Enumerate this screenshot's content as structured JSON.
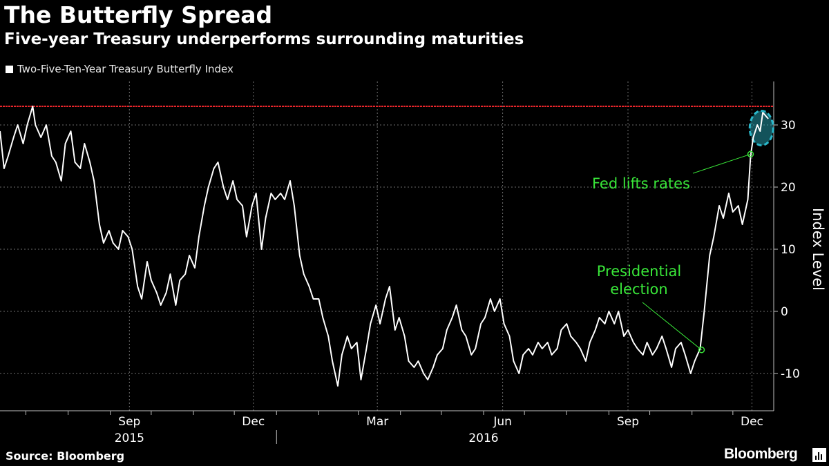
{
  "title": "The Butterfly Spread",
  "subtitle": "Five-year Treasury underperforms surrounding maturities",
  "legend": {
    "label": "Two-Five-Ten-Year Treasury Butterfly Index",
    "color": "#ffffff"
  },
  "source": "Source: Bloomberg",
  "brand": "Bloomberg",
  "colors": {
    "background": "#000000",
    "line": "#ffffff",
    "reference_line": "#e8262b",
    "annotation": "#39e639",
    "highlight": "#2ab7c9"
  },
  "chart_data": {
    "type": "line",
    "ylabel": "Index Level",
    "ylim": [
      -16,
      37
    ],
    "yticks": [
      30,
      20,
      10,
      0,
      -10
    ],
    "xlim": [
      "2015-06-12",
      "2016-12-31"
    ],
    "month_ticks": [
      "2015-07-01",
      "2015-08-01",
      "2015-09-01",
      "2015-10-01",
      "2015-11-01",
      "2015-12-01",
      "2016-01-01",
      "2016-02-01",
      "2016-03-01",
      "2016-04-01",
      "2016-05-01",
      "2016-06-01",
      "2016-07-01",
      "2016-08-01",
      "2016-09-01",
      "2016-10-01",
      "2016-11-01",
      "2016-12-01"
    ],
    "x_labels": [
      {
        "label": "Sep",
        "date": "2015-09-15"
      },
      {
        "label": "Dec",
        "date": "2015-12-15"
      },
      {
        "label": "Mar",
        "date": "2016-03-15"
      },
      {
        "label": "Jun",
        "date": "2016-06-15"
      },
      {
        "label": "Sep",
        "date": "2016-09-15"
      },
      {
        "label": "Dec",
        "date": "2016-12-15"
      }
    ],
    "year_labels": [
      {
        "label": "2015",
        "date": "2015-09-15"
      },
      {
        "label": "2016",
        "date": "2016-06-01"
      }
    ],
    "year_divider": "2016-01-01",
    "reference_line": 33,
    "series": [
      {
        "values": [
          [
            "2015-06-12",
            29
          ],
          [
            "2015-06-15",
            23
          ],
          [
            "2015-06-18",
            25
          ],
          [
            "2015-06-22",
            28
          ],
          [
            "2015-06-25",
            30
          ],
          [
            "2015-06-29",
            27
          ],
          [
            "2015-07-02",
            30
          ],
          [
            "2015-07-06",
            33
          ],
          [
            "2015-07-08",
            30
          ],
          [
            "2015-07-12",
            28
          ],
          [
            "2015-07-16",
            30
          ],
          [
            "2015-07-20",
            25
          ],
          [
            "2015-07-23",
            24
          ],
          [
            "2015-07-27",
            21
          ],
          [
            "2015-07-30",
            27
          ],
          [
            "2015-08-03",
            29
          ],
          [
            "2015-08-06",
            24
          ],
          [
            "2015-08-10",
            23
          ],
          [
            "2015-08-13",
            27
          ],
          [
            "2015-08-17",
            24
          ],
          [
            "2015-08-20",
            21
          ],
          [
            "2015-08-24",
            14
          ],
          [
            "2015-08-27",
            11
          ],
          [
            "2015-08-31",
            13
          ],
          [
            "2015-09-03",
            11
          ],
          [
            "2015-09-07",
            10
          ],
          [
            "2015-09-10",
            13
          ],
          [
            "2015-09-14",
            12
          ],
          [
            "2015-09-17",
            10
          ],
          [
            "2015-09-21",
            4
          ],
          [
            "2015-09-24",
            2
          ],
          [
            "2015-09-28",
            8
          ],
          [
            "2015-10-01",
            5
          ],
          [
            "2015-10-05",
            3
          ],
          [
            "2015-10-08",
            1
          ],
          [
            "2015-10-12",
            3
          ],
          [
            "2015-10-15",
            6
          ],
          [
            "2015-10-19",
            1
          ],
          [
            "2015-10-22",
            5
          ],
          [
            "2015-10-26",
            6
          ],
          [
            "2015-10-29",
            9
          ],
          [
            "2015-11-02",
            7
          ],
          [
            "2015-11-05",
            12
          ],
          [
            "2015-11-09",
            17
          ],
          [
            "2015-11-12",
            20
          ],
          [
            "2015-11-16",
            23
          ],
          [
            "2015-11-19",
            24
          ],
          [
            "2015-11-23",
            20
          ],
          [
            "2015-11-26",
            18
          ],
          [
            "2015-11-30",
            21
          ],
          [
            "2015-12-03",
            18
          ],
          [
            "2015-12-07",
            17
          ],
          [
            "2015-12-10",
            12
          ],
          [
            "2015-12-14",
            17
          ],
          [
            "2015-12-17",
            19
          ],
          [
            "2015-12-21",
            10
          ],
          [
            "2015-12-24",
            15
          ],
          [
            "2015-12-28",
            19
          ],
          [
            "2015-12-31",
            18
          ],
          [
            "2016-01-04",
            19
          ],
          [
            "2016-01-07",
            18
          ],
          [
            "2016-01-11",
            21
          ],
          [
            "2016-01-14",
            17
          ],
          [
            "2016-01-18",
            9
          ],
          [
            "2016-01-21",
            6
          ],
          [
            "2016-01-25",
            4
          ],
          [
            "2016-01-28",
            2
          ],
          [
            "2016-02-01",
            2
          ],
          [
            "2016-02-04",
            -1
          ],
          [
            "2016-02-08",
            -4
          ],
          [
            "2016-02-11",
            -8
          ],
          [
            "2016-02-15",
            -12
          ],
          [
            "2016-02-18",
            -7
          ],
          [
            "2016-02-22",
            -4
          ],
          [
            "2016-02-25",
            -6
          ],
          [
            "2016-02-29",
            -5
          ],
          [
            "2016-03-03",
            -11
          ],
          [
            "2016-03-07",
            -6
          ],
          [
            "2016-03-10",
            -2
          ],
          [
            "2016-03-14",
            1
          ],
          [
            "2016-03-17",
            -2
          ],
          [
            "2016-03-21",
            2
          ],
          [
            "2016-03-24",
            4
          ],
          [
            "2016-03-28",
            -3
          ],
          [
            "2016-03-31",
            -1
          ],
          [
            "2016-04-04",
            -4
          ],
          [
            "2016-04-07",
            -8
          ],
          [
            "2016-04-11",
            -9
          ],
          [
            "2016-04-14",
            -8
          ],
          [
            "2016-04-18",
            -10
          ],
          [
            "2016-04-21",
            -11
          ],
          [
            "2016-04-25",
            -9
          ],
          [
            "2016-04-28",
            -7
          ],
          [
            "2016-05-02",
            -6
          ],
          [
            "2016-05-05",
            -3
          ],
          [
            "2016-05-09",
            -1
          ],
          [
            "2016-05-12",
            1
          ],
          [
            "2016-05-16",
            -3
          ],
          [
            "2016-05-19",
            -4
          ],
          [
            "2016-05-23",
            -7
          ],
          [
            "2016-05-26",
            -6
          ],
          [
            "2016-05-30",
            -2
          ],
          [
            "2016-06-02",
            -1
          ],
          [
            "2016-06-06",
            2
          ],
          [
            "2016-06-09",
            0
          ],
          [
            "2016-06-13",
            2
          ],
          [
            "2016-06-16",
            -2
          ],
          [
            "2016-06-20",
            -4
          ],
          [
            "2016-06-23",
            -8
          ],
          [
            "2016-06-27",
            -10
          ],
          [
            "2016-06-30",
            -7
          ],
          [
            "2016-07-04",
            -6
          ],
          [
            "2016-07-07",
            -7
          ],
          [
            "2016-07-11",
            -5
          ],
          [
            "2016-07-14",
            -6
          ],
          [
            "2016-07-18",
            -5
          ],
          [
            "2016-07-21",
            -7
          ],
          [
            "2016-07-25",
            -6
          ],
          [
            "2016-07-28",
            -3
          ],
          [
            "2016-08-01",
            -2
          ],
          [
            "2016-08-04",
            -4
          ],
          [
            "2016-08-08",
            -5
          ],
          [
            "2016-08-11",
            -6
          ],
          [
            "2016-08-15",
            -8
          ],
          [
            "2016-08-18",
            -5
          ],
          [
            "2016-08-22",
            -3
          ],
          [
            "2016-08-25",
            -1
          ],
          [
            "2016-08-29",
            -2
          ],
          [
            "2016-09-01",
            0
          ],
          [
            "2016-09-05",
            -2
          ],
          [
            "2016-09-08",
            0
          ],
          [
            "2016-09-12",
            -4
          ],
          [
            "2016-09-15",
            -3
          ],
          [
            "2016-09-19",
            -5
          ],
          [
            "2016-09-22",
            -6
          ],
          [
            "2016-09-26",
            -7
          ],
          [
            "2016-09-29",
            -5
          ],
          [
            "2016-10-03",
            -7
          ],
          [
            "2016-10-06",
            -6
          ],
          [
            "2016-10-10",
            -4
          ],
          [
            "2016-10-13",
            -6
          ],
          [
            "2016-10-17",
            -9
          ],
          [
            "2016-10-20",
            -6
          ],
          [
            "2016-10-24",
            -5
          ],
          [
            "2016-10-27",
            -7
          ],
          [
            "2016-10-31",
            -10
          ],
          [
            "2016-11-03",
            -8
          ],
          [
            "2016-11-07",
            -6
          ],
          [
            "2016-11-10",
            0
          ],
          [
            "2016-11-14",
            9
          ],
          [
            "2016-11-17",
            12
          ],
          [
            "2016-11-21",
            17
          ],
          [
            "2016-11-24",
            15
          ],
          [
            "2016-11-28",
            19
          ],
          [
            "2016-12-01",
            16
          ],
          [
            "2016-12-05",
            17
          ],
          [
            "2016-12-08",
            14
          ],
          [
            "2016-12-12",
            18
          ],
          [
            "2016-12-14",
            25
          ],
          [
            "2016-12-16",
            28
          ],
          [
            "2016-12-19",
            30
          ],
          [
            "2016-12-21",
            29
          ],
          [
            "2016-12-23",
            32
          ],
          [
            "2016-12-27",
            31
          ]
        ]
      }
    ],
    "annotations": [
      {
        "label": "Fed lifts rates",
        "date": "2016-12-14",
        "value": 25.3
      },
      {
        "label_lines": [
          "Presidential",
          "election"
        ],
        "date": "2016-11-08",
        "value": -6.2
      }
    ],
    "highlight": {
      "date_center": "2016-12-22",
      "value_center": 29.5
    }
  }
}
